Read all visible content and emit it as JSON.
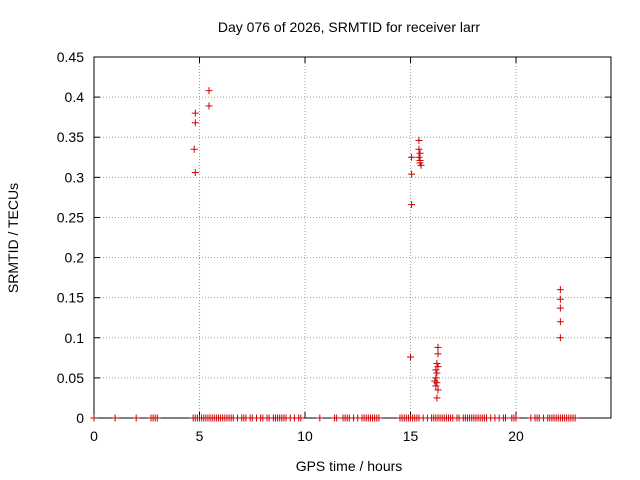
{
  "chart_data": {
    "type": "scatter",
    "title": "Day 076 of 2026, SRMTID for receiver larr",
    "xlabel": "GPS time / hours",
    "ylabel": "SRMTID / TECUs",
    "xlim": [
      0,
      24.5
    ],
    "ylim": [
      0,
      0.45
    ],
    "x_ticks": [
      0,
      5,
      10,
      15,
      20
    ],
    "x_tick_labels": [
      "0",
      "5",
      "10",
      "15",
      "20"
    ],
    "y_ticks": [
      0,
      0.05,
      0.1,
      0.15,
      0.2,
      0.25,
      0.3,
      0.35,
      0.4,
      0.45
    ],
    "y_tick_labels": [
      "0",
      "0.05",
      "0.1",
      "0.15",
      "0.2",
      "0.25",
      "0.3",
      "0.35",
      "0.4",
      "0.45"
    ],
    "grid": true,
    "marker": "+",
    "marker_color": "#cc0000",
    "series": [
      {
        "name": "SRMTID",
        "points": [
          [
            4.8,
            0.38
          ],
          [
            4.8,
            0.368
          ],
          [
            4.75,
            0.335
          ],
          [
            4.8,
            0.306
          ],
          [
            5.45,
            0.408
          ],
          [
            5.45,
            0.389
          ],
          [
            15.05,
            0.325
          ],
          [
            15.05,
            0.304
          ],
          [
            15.05,
            0.266
          ],
          [
            15.0,
            0.076
          ],
          [
            15.4,
            0.346
          ],
          [
            15.4,
            0.335
          ],
          [
            15.45,
            0.33
          ],
          [
            15.4,
            0.325
          ],
          [
            15.45,
            0.321
          ],
          [
            15.45,
            0.318
          ],
          [
            15.5,
            0.315
          ],
          [
            16.3,
            0.088
          ],
          [
            16.3,
            0.08
          ],
          [
            16.25,
            0.068
          ],
          [
            16.3,
            0.064
          ],
          [
            16.2,
            0.06
          ],
          [
            16.25,
            0.056
          ],
          [
            16.2,
            0.05
          ],
          [
            16.15,
            0.046
          ],
          [
            16.25,
            0.044
          ],
          [
            16.2,
            0.04
          ],
          [
            16.3,
            0.035
          ],
          [
            16.25,
            0.025
          ],
          [
            22.1,
            0.16
          ],
          [
            22.1,
            0.148
          ],
          [
            22.1,
            0.137
          ],
          [
            22.1,
            0.12
          ],
          [
            22.1,
            0.1
          ]
        ],
        "zero_x": [
          0.0,
          1.0,
          2.0,
          2.7,
          2.8,
          2.9,
          3.0,
          4.7,
          4.8,
          4.9,
          5.0,
          5.1,
          5.2,
          5.3,
          5.4,
          5.5,
          5.6,
          5.7,
          5.8,
          5.9,
          6.0,
          6.1,
          6.2,
          6.3,
          6.4,
          6.5,
          6.6,
          6.8,
          7.0,
          7.1,
          7.2,
          7.4,
          7.5,
          7.7,
          7.9,
          8.0,
          8.2,
          8.3,
          8.5,
          8.6,
          8.7,
          8.8,
          8.9,
          9.0,
          9.1,
          9.3,
          9.5,
          9.7,
          9.8,
          10.7,
          11.4,
          11.5,
          11.8,
          11.9,
          12.0,
          12.1,
          12.3,
          12.5,
          12.7,
          12.8,
          12.9,
          13.0,
          13.1,
          13.2,
          13.3,
          13.4,
          13.5,
          14.5,
          14.6,
          14.7,
          14.8,
          14.9,
          15.0,
          15.1,
          15.2,
          15.3,
          15.4,
          15.6,
          15.8,
          16.0,
          16.1,
          16.2,
          16.3,
          16.4,
          16.5,
          16.6,
          16.7,
          16.8,
          16.9,
          17.0,
          17.2,
          17.3,
          17.5,
          17.6,
          17.7,
          17.8,
          17.9,
          18.0,
          18.1,
          18.2,
          18.3,
          18.4,
          18.5,
          18.6,
          18.8,
          19.0,
          19.2,
          19.4,
          19.5,
          19.8,
          19.9,
          20.0,
          20.7,
          20.9,
          21.0,
          21.1,
          21.3,
          21.5,
          21.6,
          21.7,
          21.8,
          21.9,
          22.0,
          22.1,
          22.2,
          22.3,
          22.4,
          22.5,
          22.6,
          22.7,
          22.8
        ]
      }
    ]
  }
}
